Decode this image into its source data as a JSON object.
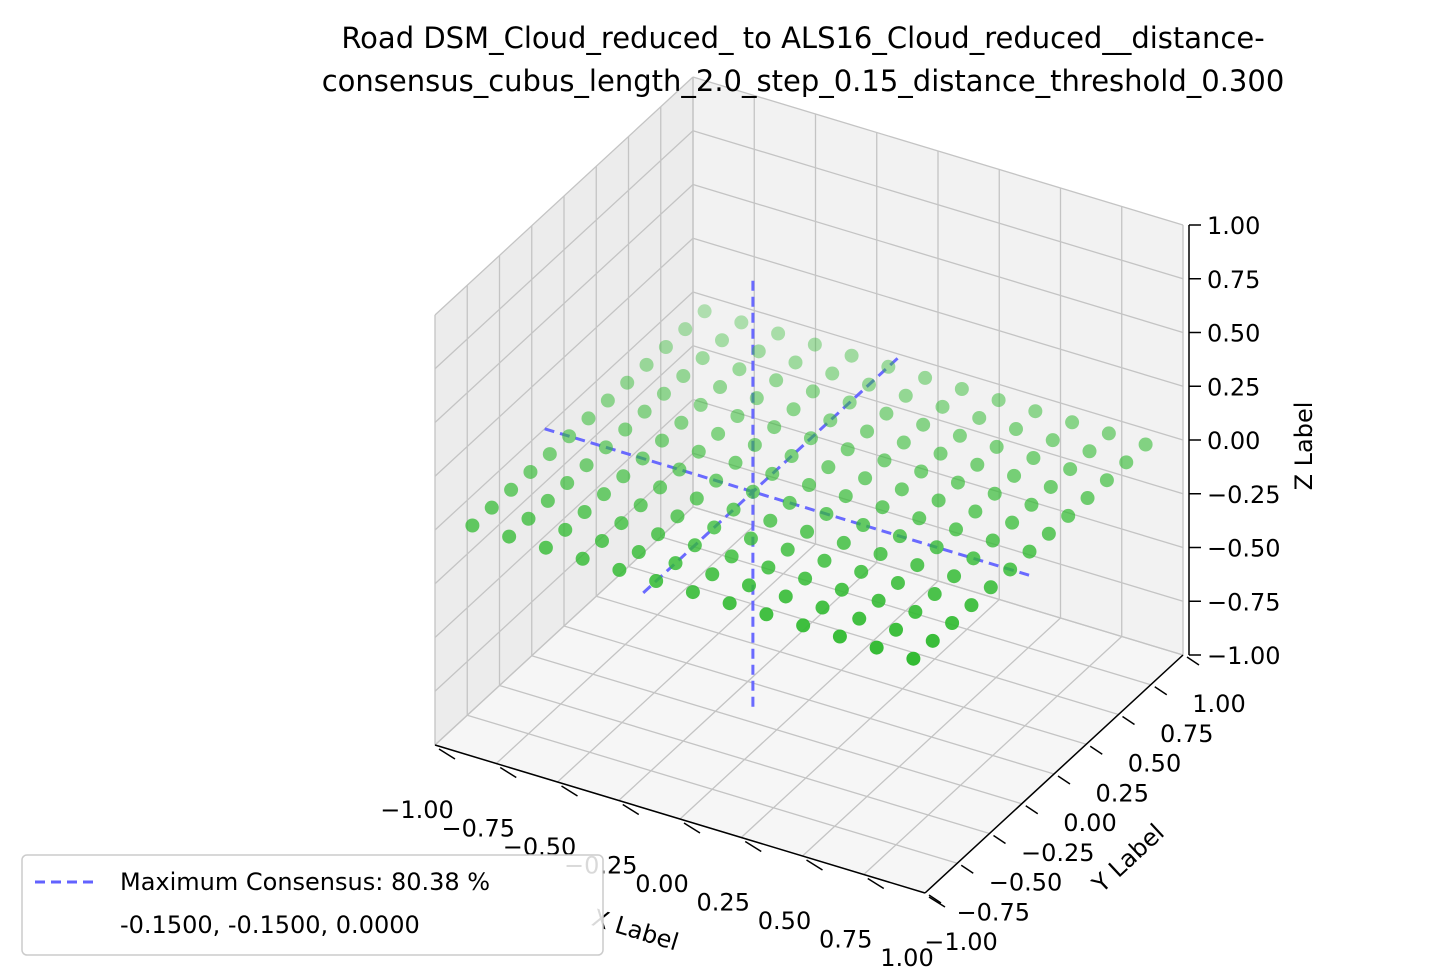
{
  "chart_data": {
    "type": "scatter3d",
    "title": [
      "Road DSM_Cloud_reduced_ to ALS16_Cloud_reduced__distance-",
      "consensus_cubus_length_2.0_step_0.15_distance_threshold_0.300"
    ],
    "xlabel": "X Label",
    "ylabel": "Y Label",
    "zlabel": "Z Label",
    "xlim": [
      -1,
      1
    ],
    "ylim": [
      -1,
      1
    ],
    "zlim": [
      -1,
      1
    ],
    "xticks": [
      {
        "value": -1,
        "label": "−1.00"
      },
      {
        "value": -0.75,
        "label": "−0.75"
      },
      {
        "value": -0.5,
        "label": "−0.50"
      },
      {
        "value": -0.25,
        "label": "−0.25"
      },
      {
        "value": 0,
        "label": "0.00"
      },
      {
        "value": 0.25,
        "label": "0.25"
      },
      {
        "value": 0.5,
        "label": "0.50"
      },
      {
        "value": 0.75,
        "label": "0.75"
      },
      {
        "value": 1,
        "label": "1.00"
      }
    ],
    "yticks": [
      {
        "value": -1,
        "label": "−1.00"
      },
      {
        "value": -0.75,
        "label": "−0.75"
      },
      {
        "value": -0.5,
        "label": "−0.50"
      },
      {
        "value": -0.25,
        "label": "−0.25"
      },
      {
        "value": 0,
        "label": "0.00"
      },
      {
        "value": 0.25,
        "label": "0.25"
      },
      {
        "value": 0.5,
        "label": "0.50"
      },
      {
        "value": 0.75,
        "label": "0.75"
      },
      {
        "value": 1,
        "label": "1.00"
      }
    ],
    "zticks": [
      {
        "value": -1,
        "label": "−1.00"
      },
      {
        "value": -0.75,
        "label": "−0.75"
      },
      {
        "value": -0.5,
        "label": "−0.50"
      },
      {
        "value": -0.25,
        "label": "−0.25"
      },
      {
        "value": 0,
        "label": "0.00"
      },
      {
        "value": 0.25,
        "label": "0.25"
      },
      {
        "value": 0.5,
        "label": "0.50"
      },
      {
        "value": 0.75,
        "label": "0.75"
      },
      {
        "value": 1,
        "label": "1.00"
      }
    ],
    "grid": true,
    "points": {
      "color": "#33bb33",
      "x": [
        -0.9,
        -0.75,
        -0.6,
        -0.45,
        -0.3,
        -0.15,
        0,
        0.15,
        0.3,
        0.45,
        0.6,
        0.75,
        0.9
      ],
      "y": [
        -0.9,
        -0.75,
        -0.6,
        -0.45,
        -0.3,
        -0.15,
        0,
        0.15,
        0.3,
        0.45,
        0.6,
        0.75,
        0.9
      ],
      "z": [
        [
          0,
          0,
          0,
          0,
          0,
          0,
          0,
          0,
          0,
          0,
          0,
          0,
          0
        ],
        [
          0,
          0,
          0,
          0,
          0,
          0,
          0,
          0,
          0,
          0,
          0,
          0,
          0
        ],
        [
          0,
          0,
          0,
          0,
          0,
          0,
          0,
          0,
          0,
          0,
          0,
          0,
          0
        ],
        [
          0,
          0,
          0,
          0,
          0,
          0,
          0,
          0,
          0,
          0,
          0,
          0,
          0
        ],
        [
          0,
          0,
          0,
          0,
          0,
          0,
          0,
          0,
          0,
          0,
          0,
          0,
          0
        ],
        [
          0,
          0,
          0,
          0,
          0,
          0,
          0,
          0,
          0,
          0,
          0,
          0,
          0
        ],
        [
          0,
          0,
          0,
          0,
          0,
          0,
          0,
          0,
          0,
          0,
          0,
          0,
          0
        ],
        [
          0,
          0,
          0,
          0,
          0,
          0,
          0,
          0,
          0,
          0,
          0,
          0,
          0
        ],
        [
          0,
          0,
          0,
          0,
          0,
          0,
          0,
          0,
          0,
          0,
          0,
          0,
          0
        ],
        [
          0,
          0,
          0,
          0,
          0,
          0,
          0,
          0,
          0,
          0,
          0,
          0,
          0
        ],
        [
          0,
          0,
          0,
          0,
          0,
          0,
          0,
          0,
          0,
          0,
          0,
          0,
          0
        ],
        [
          0,
          0,
          0,
          0,
          0,
          0,
          0,
          0,
          0,
          0,
          0,
          0,
          0
        ],
        [
          0,
          0,
          0,
          0,
          0,
          0,
          0,
          0,
          0,
          0,
          0,
          0,
          0
        ]
      ]
    },
    "consensus": {
      "name": "Maximum Consensus: 80.38 %",
      "color": "#6262ff",
      "center": [
        -0.15,
        -0.15,
        0
      ],
      "center_label": "-0.1500, -0.1500, 0.0000"
    },
    "legend": "lower left"
  }
}
